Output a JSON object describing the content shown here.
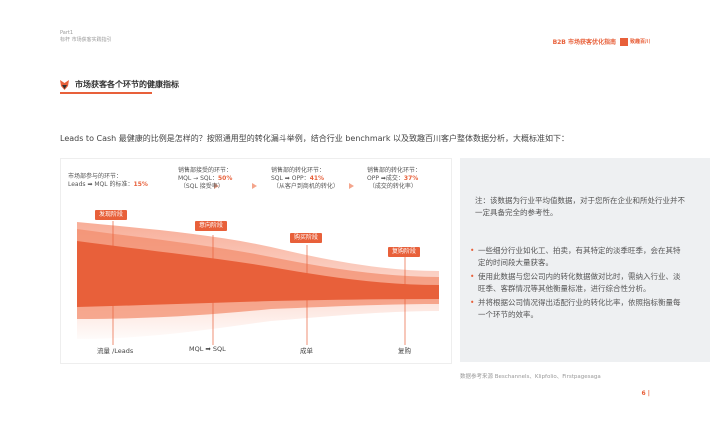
{
  "header": {
    "part": "Part1",
    "subtitle": "标杆 市场获客实践指引",
    "report_title": "B2B 市场获客优化指南",
    "brand": "致趣百川"
  },
  "section": {
    "title": "市场获客各个环节的健康指标"
  },
  "intro": "Leads to Cash 最健康的比例是怎样的？按照通用型的转化漏斗举例，结合行业 benchmark 以及致趣百川客户整体数据分析，大概标准如下：",
  "stages": [
    {
      "line1": "市场部参与的环节：",
      "line2": "Leads ➡ MQL 的标准：",
      "pct": "15%",
      "line3": ""
    },
    {
      "line1": "销售部接受的环节：",
      "line2": "MQL → SQL：",
      "pct": "50%",
      "line3": "（SQL 接受率）"
    },
    {
      "line1": "销售部的转化环节：",
      "line2": "SQL ➡ OPP：",
      "pct": "41%",
      "line3": "（从客户到商机的转化）"
    },
    {
      "line1": "销售部的转化环节：",
      "line2": "OPP ➡成交：",
      "pct": "37%",
      "line3": "（成交的转化率）"
    }
  ],
  "phases": [
    "发现阶段",
    "意向阶段",
    "购买阶段",
    "复购阶段"
  ],
  "x_labels": [
    "流量 /Leads",
    "MQL  ➡  SQL",
    "成单",
    "复购"
  ],
  "note": "注：该数据为行业平均值数据，对于您所在企业和所处行业并不一定具备完全的参考性。",
  "bullets": [
    "一些细分行业如化工、拍卖，有其特定的淡季旺季，会在其特定的时间段大量获客。",
    "使用此数据与您公司内的转化数据做对比时，需纳入行业、淡旺季、客群情况等其他衡量标准，进行综合性分析。",
    "并将根据公司情况得出适配行业的转化比率，依照指标衡量每一个环节的效率。"
  ],
  "source": "数据参考来源 Beschannels、Klipfolio、Firstpagesaga",
  "page_number": "6 |",
  "colors": {
    "accent": "#e8603a",
    "light": "#f7b9a3",
    "note_bg": "#eef0f2"
  }
}
